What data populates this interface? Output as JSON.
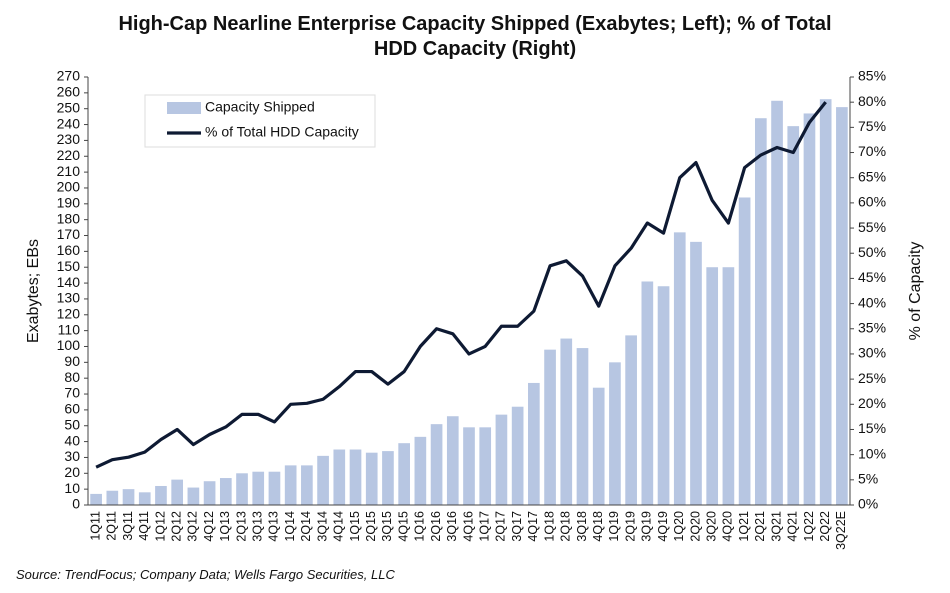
{
  "chart_data": {
    "type": "bar",
    "title": "High-Cap Nearline Enterprise Capacity Shipped (Exabytes; Left); % of Total HDD Capacity (Right)",
    "y_label": "Exabytes; EBs",
    "y2_label": "% of Capacity",
    "source": "Source:  TrendFocus; Company Data; Wells Fargo Securities, LLC",
    "categories": [
      "1Q11",
      "2Q11",
      "3Q11",
      "4Q11",
      "1Q12",
      "2Q12",
      "3Q12",
      "4Q12",
      "1Q13",
      "2Q13",
      "3Q13",
      "4Q13",
      "1Q14",
      "2Q14",
      "3Q14",
      "4Q14",
      "1Q15",
      "2Q15",
      "3Q15",
      "4Q15",
      "1Q16",
      "2Q16",
      "3Q16",
      "4Q16",
      "1Q17",
      "2Q17",
      "3Q17",
      "4Q17",
      "1Q18",
      "2Q18",
      "3Q18",
      "4Q18",
      "1Q19",
      "2Q19",
      "3Q19",
      "4Q19",
      "1Q20",
      "2Q20",
      "3Q20",
      "4Q20",
      "1Q21",
      "2Q21",
      "3Q21",
      "4Q21",
      "1Q22",
      "2Q22",
      "3Q22E"
    ],
    "series": [
      {
        "name": "Capacity Shipped",
        "type": "bar",
        "color": "#b7c6e2",
        "values": [
          7,
          9,
          10,
          8,
          12,
          16,
          11,
          15,
          17,
          20,
          21,
          21,
          25,
          25,
          31,
          35,
          35,
          33,
          34,
          39,
          43,
          51,
          56,
          49,
          49,
          57,
          62,
          77,
          98,
          105,
          99,
          74,
          90,
          107,
          141,
          138,
          172,
          166,
          150,
          150,
          194,
          244,
          255,
          239,
          247,
          256,
          251
        ]
      },
      {
        "name": "% of Total HDD Capacity",
        "type": "line",
        "color": "#0e1a33",
        "axis": "y2",
        "values": [
          7.5,
          9,
          9.5,
          10.5,
          13,
          15,
          12,
          14,
          15.5,
          18,
          18,
          16.5,
          20,
          20.2,
          21,
          23.5,
          26.5,
          26.5,
          24,
          26.5,
          31.5,
          35,
          34,
          30,
          31.5,
          35.5,
          35.5,
          38.5,
          47.5,
          48.5,
          45.5,
          39.5,
          47.5,
          51,
          56,
          54,
          65,
          68,
          60.5,
          56,
          67,
          69.5,
          71,
          70,
          76,
          80,
          null
        ]
      }
    ],
    "ylim": [
      0,
      270
    ],
    "yticks": [
      0,
      10,
      20,
      30,
      40,
      50,
      60,
      70,
      80,
      90,
      100,
      110,
      120,
      130,
      140,
      150,
      160,
      170,
      180,
      190,
      200,
      210,
      220,
      230,
      240,
      250,
      260,
      270
    ],
    "y2lim": [
      0,
      85
    ],
    "y2ticks": [
      {
        "value": 0,
        "label": "0%"
      },
      {
        "value": 5,
        "label": "5%"
      },
      {
        "value": 10,
        "label": "10%"
      },
      {
        "value": 15,
        "label": "15%"
      },
      {
        "value": 20,
        "label": "20%"
      },
      {
        "value": 25,
        "label": "25%"
      },
      {
        "value": 30,
        "label": "30%"
      },
      {
        "value": 35,
        "label": "35%"
      },
      {
        "value": 40,
        "label": "40%"
      },
      {
        "value": 45,
        "label": "45%"
      },
      {
        "value": 50,
        "label": "50%"
      },
      {
        "value": 55,
        "label": "55%"
      },
      {
        "value": 60,
        "label": "60%"
      },
      {
        "value": 65,
        "label": "65%"
      },
      {
        "value": 70,
        "label": "70%"
      },
      {
        "value": 75,
        "label": "75%"
      },
      {
        "value": 80,
        "label": "80%"
      },
      {
        "value": 85,
        "label": "85%"
      }
    ],
    "legend": "upper left"
  }
}
